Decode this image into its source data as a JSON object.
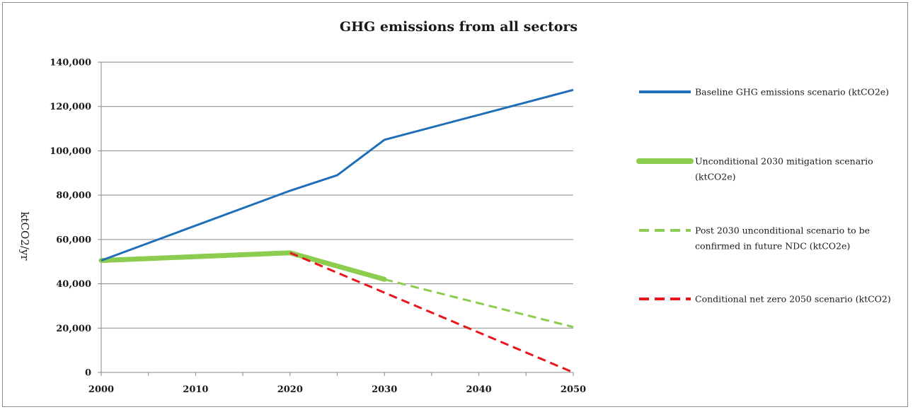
{
  "chart_data": {
    "type": "line",
    "title": "GHG emissions  from all sectors",
    "xlabel": "",
    "ylabel": "ktCO2/yr",
    "xlim": [
      2000,
      2050
    ],
    "ylim": [
      0,
      140000
    ],
    "x_ticks": [
      "2000",
      "2010",
      "2020",
      "2030",
      "2040",
      "2050"
    ],
    "y_ticks": [
      "0",
      "20,000",
      "40,000",
      "60,000",
      "80,000",
      "100,000",
      "120,000",
      "140,000"
    ],
    "grid": "horizontal",
    "legend_position": "right",
    "series": [
      {
        "name": "Baseline GHG emissions scenario (ktCO2e)",
        "legend_lines": [
          "Baseline GHG emissions scenario (ktCO2e)"
        ],
        "color": "#1f6fb8",
        "style": "solid",
        "weight": "normal",
        "x": [
          2000,
          2020,
          2025,
          2030,
          2050
        ],
        "y": [
          50500,
          82000,
          89000,
          105000,
          127500
        ]
      },
      {
        "name": "Unconditional 2030 mitigation scenario (ktCO2e)",
        "legend_lines": [
          "Unconditional 2030 mitigation scenario",
          "(ktCO2e)"
        ],
        "color": "#8ccc4e",
        "style": "solid",
        "weight": "thick",
        "x": [
          2000,
          2020,
          2030
        ],
        "y": [
          50500,
          54000,
          42000
        ]
      },
      {
        "name": "Post 2030 unconditional scenario to be confirmed in future NDC (ktCO2e)",
        "legend_lines": [
          "Post 2030 unconditional scenario to be",
          "confirmed in future NDC (ktCO2e)"
        ],
        "color": "#8ccc4e",
        "style": "dashed",
        "weight": "normal",
        "x": [
          2030,
          2050
        ],
        "y": [
          42000,
          20500
        ]
      },
      {
        "name": "Conditional net zero 2050 scenario (ktCO2)",
        "legend_lines": [
          "Conditional net zero 2050 scenario (ktCO2)"
        ],
        "color": "#e8161c",
        "style": "dashed",
        "weight": "normal",
        "x": [
          2020,
          2030,
          2050
        ],
        "y": [
          54000,
          36000,
          0
        ]
      }
    ]
  }
}
